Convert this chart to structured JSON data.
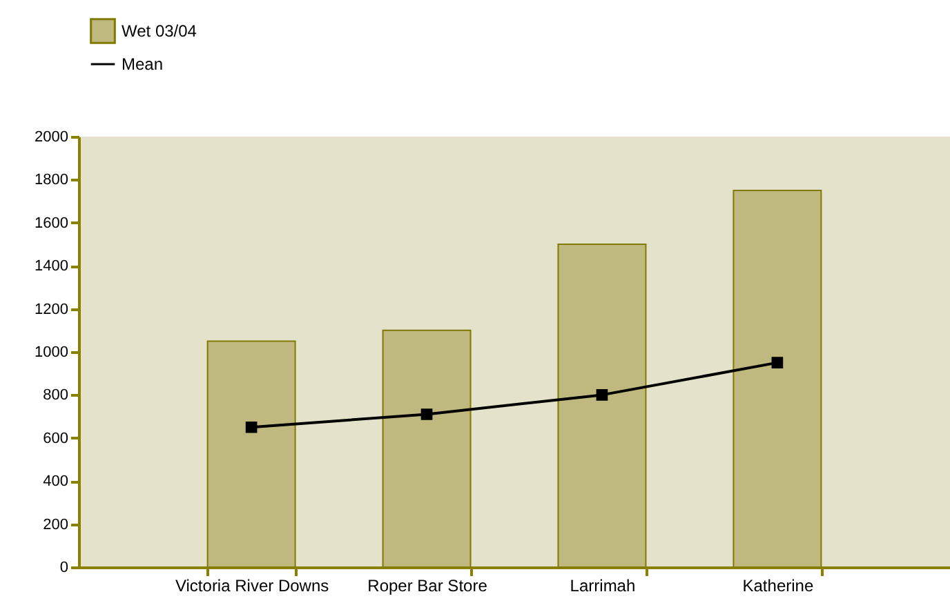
{
  "chart_data": {
    "type": "bar",
    "categories": [
      "Victoria River Downs",
      "Roper Bar Store",
      "Larrimah",
      "Katherine"
    ],
    "series": [
      {
        "name": "Wet 03/04",
        "color": "#bfb97f",
        "values": [
          1050,
          1100,
          1500,
          1750
        ]
      },
      {
        "name": "Mean",
        "type": "line",
        "color": "#000000",
        "marker": "square",
        "values": [
          650,
          710,
          800,
          950
        ]
      }
    ],
    "ylim": [
      0,
      2000
    ],
    "yticks": [
      0,
      200,
      400,
      600,
      800,
      1000,
      1200,
      1400,
      1600,
      1800,
      2000
    ],
    "grid": false,
    "legend": "top left"
  }
}
